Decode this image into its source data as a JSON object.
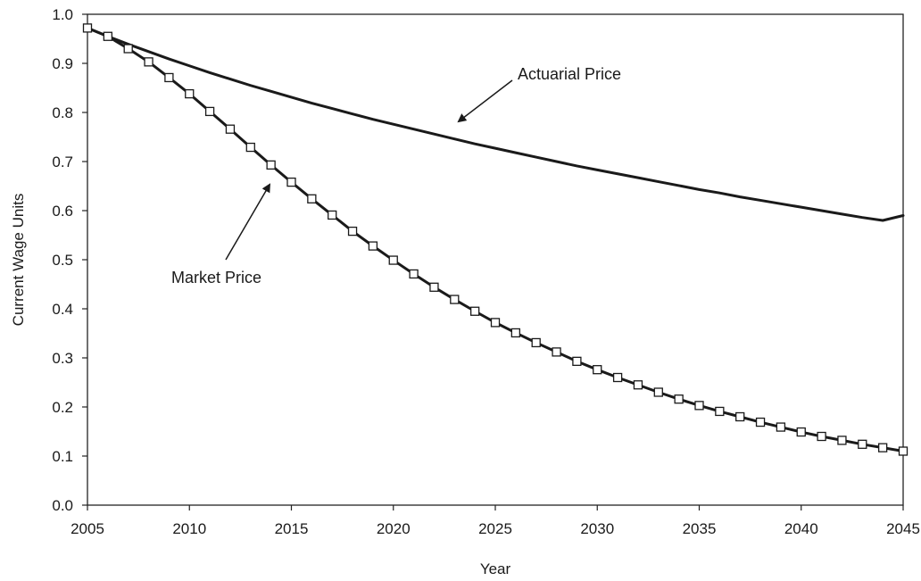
{
  "chart_data": {
    "type": "line",
    "xlabel": "Year",
    "ylabel": "Current Wage Units",
    "xlim": [
      2005,
      2045
    ],
    "ylim": [
      0.0,
      1.0
    ],
    "x_ticks": [
      "2005",
      "2010",
      "2015",
      "2020",
      "2025",
      "2030",
      "2035",
      "2040",
      "2045"
    ],
    "y_ticks": [
      "0.0",
      "0.1",
      "0.2",
      "0.3",
      "0.4",
      "0.5",
      "0.6",
      "0.7",
      "0.8",
      "0.9",
      "1.0"
    ],
    "grid": false,
    "colors": {
      "line": "#1a1a1a",
      "marker_fill": "#ffffff"
    },
    "x": [
      2005,
      2006,
      2007,
      2008,
      2009,
      2010,
      2011,
      2012,
      2013,
      2014,
      2015,
      2016,
      2017,
      2018,
      2019,
      2020,
      2021,
      2022,
      2023,
      2024,
      2025,
      2026,
      2027,
      2028,
      2029,
      2030,
      2031,
      2032,
      2033,
      2034,
      2035,
      2036,
      2037,
      2038,
      2039,
      2040,
      2041,
      2042,
      2043,
      2044,
      2045
    ],
    "series": [
      {
        "marker": "none",
        "values": [
          0.972,
          0.955,
          0.939,
          0.924,
          0.909,
          0.895,
          0.881,
          0.868,
          0.855,
          0.843,
          0.831,
          0.819,
          0.808,
          0.797,
          0.786,
          0.776,
          0.766,
          0.756,
          0.746,
          0.736,
          0.727,
          0.718,
          0.709,
          0.7,
          0.691,
          0.683,
          0.675,
          0.667,
          0.659,
          0.651,
          0.643,
          0.636,
          0.628,
          0.621,
          0.614,
          0.607,
          0.6,
          0.593,
          0.586,
          0.58,
          0.59
        ]
      },
      {
        "marker": "open-square",
        "values": [
          0.972,
          0.955,
          0.93,
          0.903,
          0.871,
          0.838,
          0.802,
          0.766,
          0.729,
          0.693,
          0.658,
          0.624,
          0.591,
          0.558,
          0.528,
          0.499,
          0.471,
          0.444,
          0.419,
          0.395,
          0.372,
          0.351,
          0.331,
          0.312,
          0.293,
          0.276,
          0.26,
          0.245,
          0.23,
          0.216,
          0.203,
          0.191,
          0.18,
          0.169,
          0.159,
          0.149,
          0.14,
          0.132,
          0.124,
          0.117,
          0.11
        ]
      }
    ],
    "annotations": [
      {
        "text": "Actuarial Price",
        "target_series": 0,
        "target_x": 2023,
        "target_y": 0.776
      },
      {
        "text": "Market Price",
        "target_series": 1,
        "target_x": 2014,
        "target_y": 0.683
      }
    ]
  }
}
